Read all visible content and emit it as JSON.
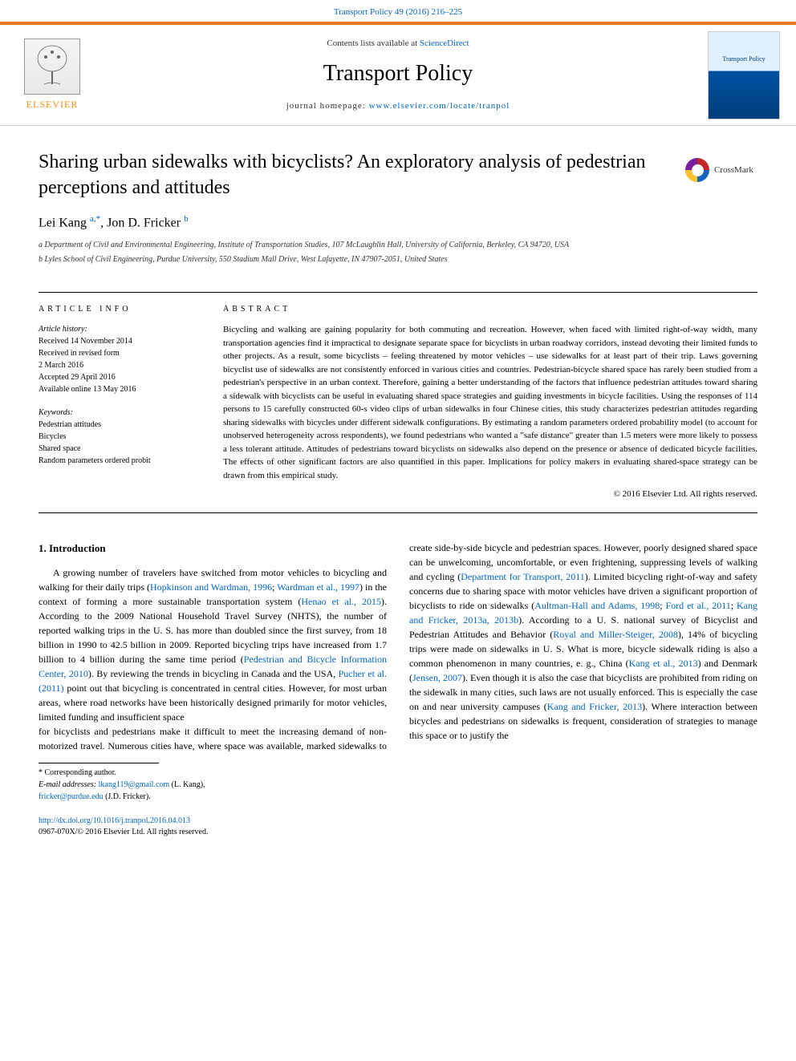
{
  "header": {
    "citation": "Transport Policy 49 (2016) 216–225",
    "contents_prefix": "Contents lists available at ",
    "contents_link": "ScienceDirect",
    "journal_name": "Transport Policy",
    "homepage_prefix": "journal homepage: ",
    "homepage_link": "www.elsevier.com/locate/tranpol",
    "publisher_logo_text": "ELSEVIER",
    "journal_cover_title": "Transport Policy",
    "accent_color": "#e87722",
    "link_color": "#0066cc"
  },
  "article": {
    "title": "Sharing urban sidewalks with bicyclists? An exploratory analysis of pedestrian perceptions and attitudes",
    "crossmark_label": "CrossMark",
    "authors_html": "Lei Kang <sup>a,*</sup>, Jon D. Fricker <sup>b</sup>",
    "affiliations": [
      "a Department of Civil and Environmental Engineering, Institute of Transportation Studies, 107 McLaughlin Hall, University of California, Berkeley, CA 94720, USA",
      "b Lyles School of Civil Engineering, Purdue University, 550 Stadium Mall Drive, West Lafayette, IN 47907-2051, United States"
    ]
  },
  "article_info": {
    "label": "ARTICLE INFO",
    "history_label": "Article history:",
    "history": [
      "Received 14 November 2014",
      "Received in revised form",
      "2 March 2016",
      "Accepted 29 April 2016",
      "Available online 13 May 2016"
    ],
    "keywords_label": "Keywords:",
    "keywords": [
      "Pedestrian attitudes",
      "Bicycles",
      "Shared space",
      "Random parameters ordered probit"
    ]
  },
  "abstract": {
    "label": "ABSTRACT",
    "text": "Bicycling and walking are gaining popularity for both commuting and recreation. However, when faced with limited right-of-way width, many transportation agencies find it impractical to designate separate space for bicyclists in urban roadway corridors, instead devoting their limited funds to other projects. As a result, some bicyclists – feeling threatened by motor vehicles – use sidewalks for at least part of their trip. Laws governing bicyclist use of sidewalks are not consistently enforced in various cities and countries. Pedestrian-bicycle shared space has rarely been studied from a pedestrian's perspective in an urban context. Therefore, gaining a better understanding of the factors that influence pedestrian attitudes toward sharing a sidewalk with bicyclists can be useful in evaluating shared space strategies and guiding investments in bicycle facilities. Using the responses of 114 persons to 15 carefully constructed 60-s video clips of urban sidewalks in four Chinese cities, this study characterizes pedestrian attitudes regarding sharing sidewalks with bicycles under different sidewalk configurations. By estimating a random parameters ordered probability model (to account for unobserved heterogeneity across respondents), we found pedestrians who wanted a \"safe distance\" greater than 1.5 meters were more likely to possess a less tolerant attitude. Attitudes of pedestrians toward bicyclists on sidewalks also depend on the presence or absence of dedicated bicycle facilities. The effects of other significant factors are also quantified in this paper. Implications for policy makers in evaluating shared-space strategy can be drawn from this empirical study.",
    "copyright": "© 2016 Elsevier Ltd. All rights reserved."
  },
  "body": {
    "section_number": "1.",
    "section_title": "Introduction",
    "col1_para": "A growing number of travelers have switched from motor vehicles to bicycling and walking for their daily trips (Hopkinson and Wardman, 1996; Wardman et al., 1997) in the context of forming a more sustainable transportation system (Henao et al., 2015). According to the 2009 National Household Travel Survey (NHTS), the number of reported walking trips in the U. S. has more than doubled since the first survey, from 18 billion in 1990 to 42.5 billion in 2009. Reported bicycling trips have increased from 1.7 billion to 4 billion during the same time period (Pedestrian and Bicycle Information Center, 2010). By reviewing the trends in bicycling in Canada and the USA, Pucher et al. (2011) point out that bicycling is concentrated in central cities. However, for most urban areas, where road networks have been historically designed primarily for motor vehicles, limited funding and insufficient space",
    "col2_para": "for bicyclists and pedestrians make it difficult to meet the increasing demand of non-motorized travel. Numerous cities have, where space was available, marked sidewalks to create side-by-side bicycle and pedestrian spaces. However, poorly designed shared space can be unwelcoming, uncomfortable, or even frightening, suppressing levels of walking and cycling (Department for Transport, 2011). Limited bicycling right-of-way and safety concerns due to sharing space with motor vehicles have driven a significant proportion of bicyclists to ride on sidewalks (Aultman-Hall and Adams, 1998; Ford et al., 2011; Kang and Fricker, 2013a, 2013b). According to a U. S. national survey of Bicyclist and Pedestrian Attitudes and Behavior (Royal and Miller-Steiger, 2008), 14% of bicycling trips were made on sidewalks in U. S. What is more, bicycle sidewalk riding is also a common phenomenon in many countries, e. g., China (Kang et al., 2013) and Denmark (Jensen, 2007). Even though it is also the case that bicyclists are prohibited from riding on the sidewalk in many cities, such laws are not usually enforced. This is especially the case on and near university campuses (Kang and Fricker, 2013). Where interaction between bicycles and pedestrians on sidewalks is frequent, consideration of strategies to manage this space or to justify the"
  },
  "footnotes": {
    "corresponding": "* Corresponding author.",
    "email_label": "E-mail addresses: ",
    "emails": [
      {
        "addr": "lkang119@gmail.com",
        "who": " (L. Kang),"
      },
      {
        "addr": "fricker@purdue.edu",
        "who": " (J.D. Fricker)."
      }
    ]
  },
  "doi": {
    "url": "http://dx.doi.org/10.1016/j.tranpol.2016.04.013",
    "issn_line": "0967-070X/© 2016 Elsevier Ltd. All rights reserved."
  }
}
